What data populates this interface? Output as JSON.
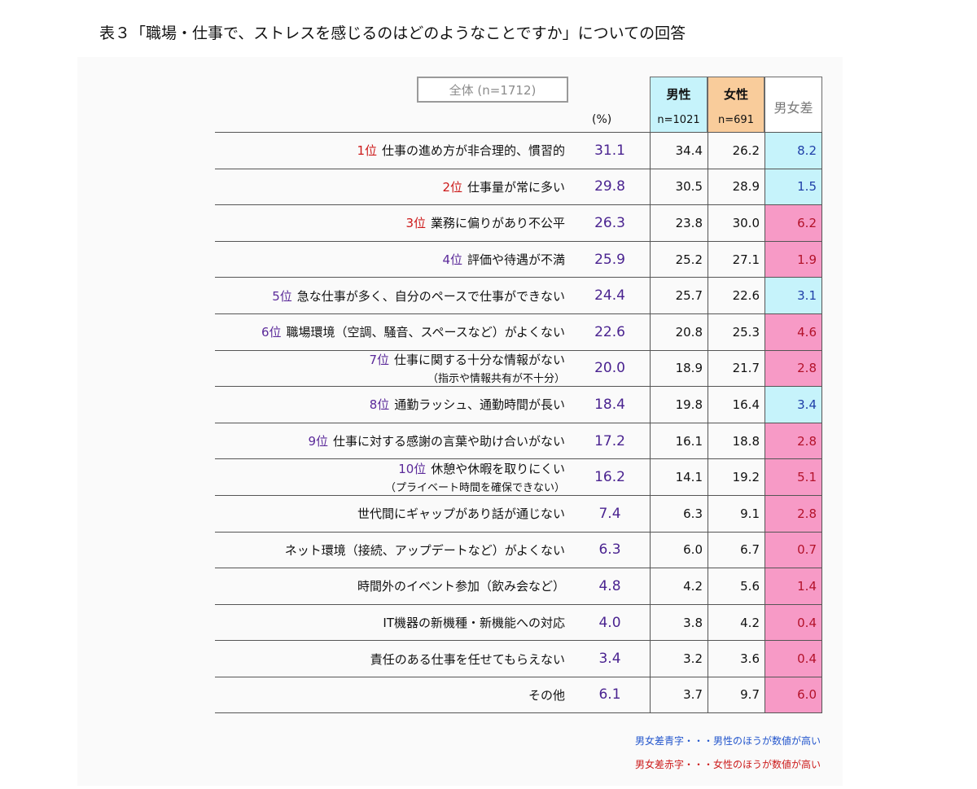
{
  "title": "表３「職場・仕事で、ストレスを感じるのはどのようなことですか」についての回答",
  "header": {
    "overall_label": "全体 (n=1712)",
    "percent_unit": "(%)",
    "male_label": "男性",
    "male_n": "n=1021",
    "female_label": "女性",
    "female_n": "n=691",
    "diff_label": "男女差"
  },
  "colors": {
    "male_header": "#c6f3fb",
    "female_header": "#f9cc9b",
    "diff_blue_bg": "#c6f3fb",
    "diff_red_bg": "#f79ac6",
    "rank_red": "#cc1a1a",
    "rank_purple": "#5b2a9a"
  },
  "notes": {
    "blue": "男女差青字・・・男性のほうが数値が高い",
    "red": "男女差赤字・・・女性のほうが数値が高い"
  },
  "chart_data": {
    "type": "table",
    "title": "表３「職場・仕事で、ストレスを感じるのはどのようなことですか」についての回答",
    "columns": [
      "全体 (n=1712)",
      "男性 n=1021",
      "女性 n=691",
      "男女差"
    ],
    "rows": [
      {
        "rank": "1位",
        "rank_color": "red",
        "label": "仕事の進め方が非合理的、慣習的",
        "sub": "",
        "overall": "31.1",
        "male": "34.4",
        "female": "26.2",
        "diff": "8.2",
        "diff_dir": "blue"
      },
      {
        "rank": "2位",
        "rank_color": "red",
        "label": "仕事量が常に多い",
        "sub": "",
        "overall": "29.8",
        "male": "30.5",
        "female": "28.9",
        "diff": "1.5",
        "diff_dir": "blue"
      },
      {
        "rank": "3位",
        "rank_color": "red",
        "label": "業務に偏りがあり不公平",
        "sub": "",
        "overall": "26.3",
        "male": "23.8",
        "female": "30.0",
        "diff": "6.2",
        "diff_dir": "red"
      },
      {
        "rank": "4位",
        "rank_color": "purple",
        "label": "評価や待遇が不満",
        "sub": "",
        "overall": "25.9",
        "male": "25.2",
        "female": "27.1",
        "diff": "1.9",
        "diff_dir": "red"
      },
      {
        "rank": "5位",
        "rank_color": "purple",
        "label": "急な仕事が多く、自分のペースで仕事ができない",
        "sub": "",
        "overall": "24.4",
        "male": "25.7",
        "female": "22.6",
        "diff": "3.1",
        "diff_dir": "blue"
      },
      {
        "rank": "6位",
        "rank_color": "purple",
        "label": "職場環境（空調、騒音、スペースなど）がよくない",
        "sub": "",
        "overall": "22.6",
        "male": "20.8",
        "female": "25.3",
        "diff": "4.6",
        "diff_dir": "red"
      },
      {
        "rank": "7位",
        "rank_color": "purple",
        "label": "仕事に関する十分な情報がない",
        "sub": "（指示や情報共有が不十分）",
        "overall": "20.0",
        "male": "18.9",
        "female": "21.7",
        "diff": "2.8",
        "diff_dir": "red"
      },
      {
        "rank": "8位",
        "rank_color": "purple",
        "label": "通勤ラッシュ、通勤時間が長い",
        "sub": "",
        "overall": "18.4",
        "male": "19.8",
        "female": "16.4",
        "diff": "3.4",
        "diff_dir": "blue"
      },
      {
        "rank": "9位",
        "rank_color": "purple",
        "label": "仕事に対する感謝の言葉や助け合いがない",
        "sub": "",
        "overall": "17.2",
        "male": "16.1",
        "female": "18.8",
        "diff": "2.8",
        "diff_dir": "red"
      },
      {
        "rank": "10位",
        "rank_color": "purple",
        "label": "休憩や休暇を取りにくい",
        "sub": "（プライベート時間を確保できない）",
        "overall": "16.2",
        "male": "14.1",
        "female": "19.2",
        "diff": "5.1",
        "diff_dir": "red"
      },
      {
        "rank": "",
        "rank_color": "",
        "label": "世代間にギャップがあり話が通じない",
        "sub": "",
        "overall": "7.4",
        "male": "6.3",
        "female": "9.1",
        "diff": "2.8",
        "diff_dir": "red"
      },
      {
        "rank": "",
        "rank_color": "",
        "label": "ネット環境（接続、アップデートなど）がよくない",
        "sub": "",
        "overall": "6.3",
        "male": "6.0",
        "female": "6.7",
        "diff": "0.7",
        "diff_dir": "red"
      },
      {
        "rank": "",
        "rank_color": "",
        "label": "時間外のイベント参加（飲み会など）",
        "sub": "",
        "overall": "4.8",
        "male": "4.2",
        "female": "5.6",
        "diff": "1.4",
        "diff_dir": "red"
      },
      {
        "rank": "",
        "rank_color": "",
        "label": "IT機器の新機種・新機能への対応",
        "sub": "",
        "overall": "4.0",
        "male": "3.8",
        "female": "4.2",
        "diff": "0.4",
        "diff_dir": "red"
      },
      {
        "rank": "",
        "rank_color": "",
        "label": "責任のある仕事を任せてもらえない",
        "sub": "",
        "overall": "3.4",
        "male": "3.2",
        "female": "3.6",
        "diff": "0.4",
        "diff_dir": "red"
      },
      {
        "rank": "",
        "rank_color": "",
        "label": "その他",
        "sub": "",
        "overall": "6.1",
        "male": "3.7",
        "female": "9.7",
        "diff": "6.0",
        "diff_dir": "red"
      }
    ]
  }
}
